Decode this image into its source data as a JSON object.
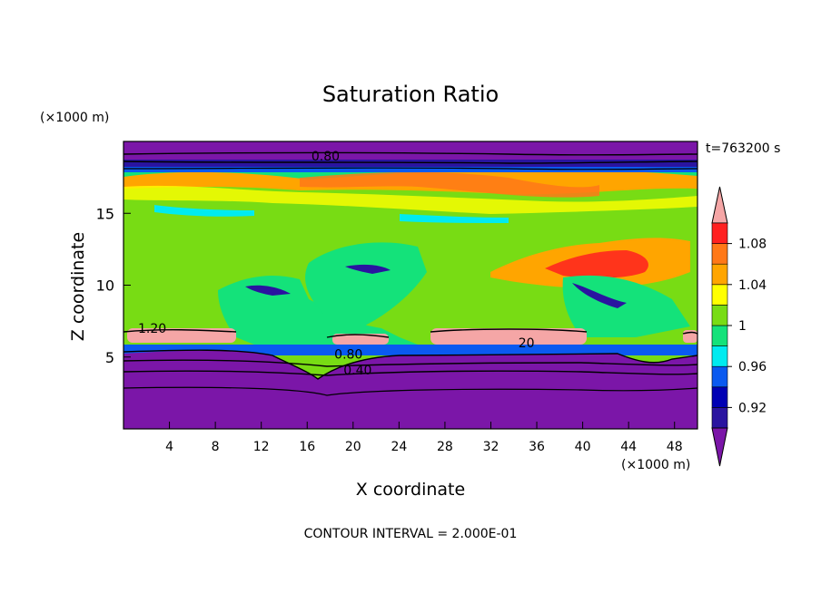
{
  "chart_data": {
    "type": "heatmap",
    "title": "Saturation Ratio",
    "xlabel": "X coordinate",
    "ylabel": "Z coordinate",
    "x_unit": "(×1000 m)",
    "y_unit": "(×1000 m)",
    "time_label": "t=763200 s",
    "footer": "CONTOUR INTERVAL = 2.000E-01",
    "xlim": [
      0,
      50
    ],
    "ylim": [
      0,
      20
    ],
    "x_ticks": [
      4,
      8,
      12,
      16,
      20,
      24,
      28,
      32,
      36,
      40,
      44,
      48
    ],
    "y_ticks": [
      5,
      10,
      15
    ],
    "colorbar": {
      "colors": [
        "#7b16a8",
        "#2a14a0",
        "#0000b4",
        "#0a5af0",
        "#00ebf0",
        "#14e27a",
        "#78dc14",
        "#ffff00",
        "#ffa500",
        "#ff7818",
        "#ff2020",
        "#f5a6a6"
      ],
      "tick_labels": [
        "0.92",
        "0.96",
        "1",
        "1.04",
        "1.08"
      ],
      "tick_levels": [
        0.92,
        0.96,
        1.0,
        1.04,
        1.08
      ]
    },
    "contour_labels": [
      {
        "text": "0.80",
        "x": 17.6,
        "z": 19.0
      },
      {
        "text": "1.20",
        "x": 2.5,
        "z": 7.0
      },
      {
        "text": "0.80",
        "x": 19.6,
        "z": 5.2
      },
      {
        "text": "0.40",
        "x": 20.4,
        "z": 4.1
      },
      {
        "text": "20",
        "x": 35.1,
        "z": 6.0
      }
    ]
  }
}
